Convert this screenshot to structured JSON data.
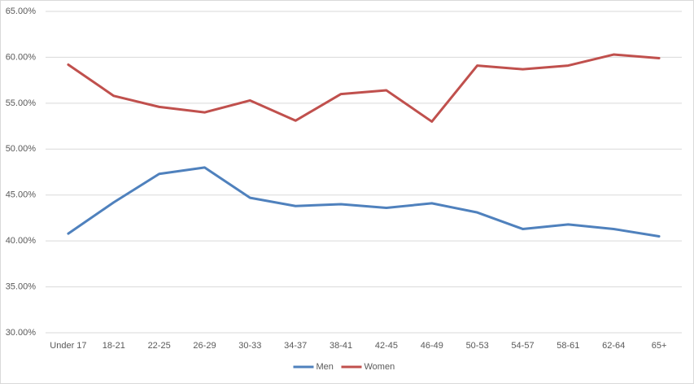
{
  "chart_data": {
    "type": "line",
    "categories": [
      "Under 17",
      "18-21",
      "22-25",
      "26-29",
      "30-33",
      "34-37",
      "38-41",
      "42-45",
      "46-49",
      "50-53",
      "54-57",
      "58-61",
      "62-64",
      "65+"
    ],
    "series": [
      {
        "name": "Men",
        "color": "#4f81bd",
        "values": [
          40.8,
          44.2,
          47.3,
          48.0,
          44.7,
          43.8,
          44.0,
          43.6,
          44.1,
          43.1,
          41.3,
          41.8,
          41.3,
          40.5
        ]
      },
      {
        "name": "Women",
        "color": "#c0504d",
        "values": [
          59.2,
          55.8,
          54.6,
          54.0,
          55.3,
          53.1,
          56.0,
          56.4,
          53.0,
          59.1,
          58.7,
          59.1,
          60.3,
          59.9
        ]
      }
    ],
    "ylim": [
      30,
      65
    ],
    "yticks": [
      {
        "value": 30,
        "label": "30.00%"
      },
      {
        "value": 35,
        "label": "35.00%"
      },
      {
        "value": 40,
        "label": "40.00%"
      },
      {
        "value": 45,
        "label": "45.00%"
      },
      {
        "value": 50,
        "label": "50.00%"
      },
      {
        "value": 55,
        "label": "55.00%"
      },
      {
        "value": 60,
        "label": "60.00%"
      },
      {
        "value": 65,
        "label": "65.00%"
      }
    ],
    "grid": true,
    "legend": "bottom"
  }
}
